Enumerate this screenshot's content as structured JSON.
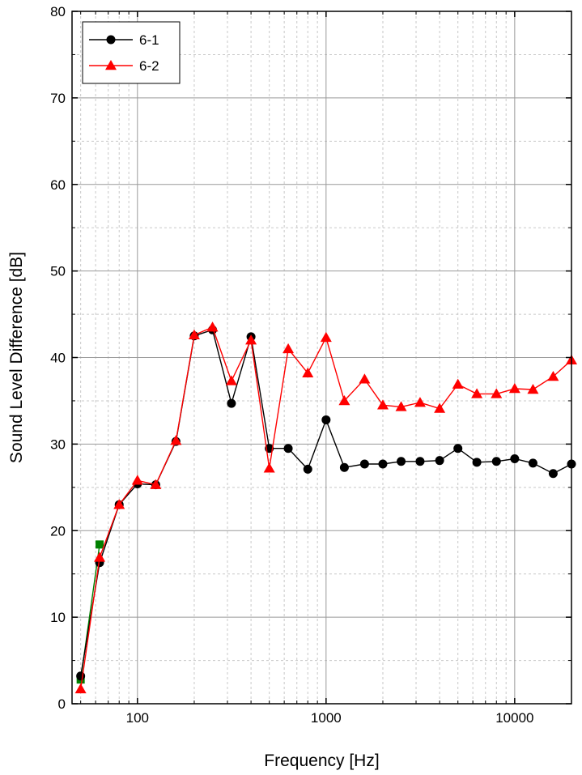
{
  "chart_data": {
    "type": "line",
    "xlabel": "Frequency [Hz]",
    "ylabel": "Sound Level Difference [dB]",
    "x_scale": "log",
    "xlim": [
      45,
      20000
    ],
    "ylim": [
      0,
      80
    ],
    "x_tick_labels": [
      "100",
      "1000",
      "10000"
    ],
    "x_tick_values": [
      100,
      1000,
      10000
    ],
    "y_tick_labels": [
      "0",
      "10",
      "20",
      "30",
      "40",
      "50",
      "60",
      "70",
      "80"
    ],
    "y_tick_values": [
      0,
      10,
      20,
      30,
      40,
      50,
      60,
      70,
      80
    ],
    "grid": true,
    "legend_position": "top-left",
    "series": [
      {
        "name": "6-1",
        "color": "#000000",
        "marker": "circle",
        "x": [
          50,
          63,
          80,
          100,
          125,
          160,
          200,
          250,
          315,
          400,
          500,
          630,
          800,
          1000,
          1250,
          1600,
          2000,
          2500,
          3150,
          4000,
          5000,
          6300,
          8000,
          10000,
          12500,
          16000,
          20000
        ],
        "y": [
          3.2,
          16.3,
          23.0,
          25.4,
          25.3,
          30.3,
          42.5,
          43.2,
          34.7,
          42.4,
          29.5,
          29.5,
          27.1,
          32.8,
          27.3,
          27.7,
          27.7,
          28.0,
          28.0,
          28.1,
          29.5,
          27.9,
          28.0,
          28.3,
          27.8,
          26.6,
          27.7
        ]
      },
      {
        "name": "6-2",
        "color": "#ff0000",
        "marker": "triangle",
        "x": [
          50,
          63,
          80,
          100,
          125,
          160,
          200,
          250,
          315,
          400,
          500,
          630,
          800,
          1000,
          1250,
          1600,
          2000,
          2500,
          3150,
          4000,
          5000,
          6300,
          8000,
          10000,
          12500,
          16000,
          20000
        ],
        "y": [
          1.7,
          16.9,
          23.0,
          25.8,
          25.3,
          30.4,
          42.6,
          43.5,
          37.3,
          42.0,
          27.2,
          41.0,
          38.2,
          42.3,
          35.0,
          37.5,
          34.5,
          34.3,
          34.8,
          34.1,
          36.9,
          35.8,
          35.8,
          36.4,
          36.3,
          37.8,
          39.7
        ]
      },
      {
        "name": "",
        "color": "#008000",
        "marker": "square",
        "x": [
          50,
          63
        ],
        "y": [
          2.8,
          18.4
        ]
      }
    ]
  }
}
